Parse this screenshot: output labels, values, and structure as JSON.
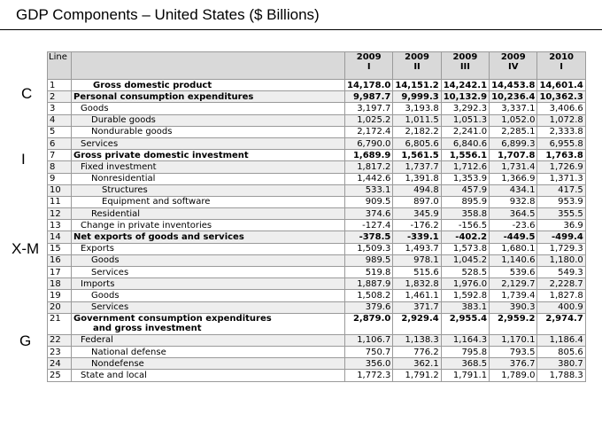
{
  "title": "GDP Components – United States ($ Billions)",
  "side_labels": [
    "C",
    "I",
    "X-M",
    "G"
  ],
  "table": {
    "line_header": "Line",
    "columns": [
      {
        "year": "2009",
        "quarter": "I"
      },
      {
        "year": "2009",
        "quarter": "II"
      },
      {
        "year": "2009",
        "quarter": "III"
      },
      {
        "year": "2009",
        "quarter": "IV"
      },
      {
        "year": "2010",
        "quarter": "I"
      }
    ],
    "rows": [
      {
        "line": "1",
        "label": "Gross domestic product",
        "values": [
          "14,178.0",
          "14,151.2",
          "14,242.1",
          "14,453.8",
          "14,601.4"
        ]
      },
      {
        "line": "2",
        "label": "Personal consumption expenditures",
        "values": [
          "9,987.7",
          "9,999.3",
          "10,132.9",
          "10,236.4",
          "10,362.3"
        ]
      },
      {
        "line": "3",
        "label": "Goods",
        "values": [
          "3,197.7",
          "3,193.8",
          "3,292.3",
          "3,337.1",
          "3,406.6"
        ]
      },
      {
        "line": "4",
        "label": "Durable goods",
        "values": [
          "1,025.2",
          "1,011.5",
          "1,051.3",
          "1,052.0",
          "1,072.8"
        ]
      },
      {
        "line": "5",
        "label": "Nondurable goods",
        "values": [
          "2,172.4",
          "2,182.2",
          "2,241.0",
          "2,285.1",
          "2,333.8"
        ]
      },
      {
        "line": "6",
        "label": "Services",
        "values": [
          "6,790.0",
          "6,805.6",
          "6,840.6",
          "6,899.3",
          "6,955.8"
        ]
      },
      {
        "line": "7",
        "label": "Gross private domestic investment",
        "values": [
          "1,689.9",
          "1,561.5",
          "1,556.1",
          "1,707.8",
          "1,763.8"
        ]
      },
      {
        "line": "8",
        "label": "Fixed investment",
        "values": [
          "1,817.2",
          "1,737.7",
          "1,712.6",
          "1,731.4",
          "1,726.9"
        ]
      },
      {
        "line": "9",
        "label": "Nonresidential",
        "values": [
          "1,442.6",
          "1,391.8",
          "1,353.9",
          "1,366.9",
          "1,371.3"
        ]
      },
      {
        "line": "10",
        "label": "Structures",
        "values": [
          "533.1",
          "494.8",
          "457.9",
          "434.1",
          "417.5"
        ]
      },
      {
        "line": "11",
        "label": "Equipment and software",
        "values": [
          "909.5",
          "897.0",
          "895.9",
          "932.8",
          "953.9"
        ]
      },
      {
        "line": "12",
        "label": "Residential",
        "values": [
          "374.6",
          "345.9",
          "358.8",
          "364.5",
          "355.5"
        ]
      },
      {
        "line": "13",
        "label": "Change in private inventories",
        "values": [
          "-127.4",
          "-176.2",
          "-156.5",
          "-23.6",
          "36.9"
        ]
      },
      {
        "line": "14",
        "label": "Net exports of goods and services",
        "values": [
          "-378.5",
          "-339.1",
          "-402.2",
          "-449.5",
          "-499.4"
        ]
      },
      {
        "line": "15",
        "label": "Exports",
        "values": [
          "1,509.3",
          "1,493.7",
          "1,573.8",
          "1,680.1",
          "1,729.3"
        ]
      },
      {
        "line": "16",
        "label": "Goods",
        "values": [
          "989.5",
          "978.1",
          "1,045.2",
          "1,140.6",
          "1,180.0"
        ]
      },
      {
        "line": "17",
        "label": "Services",
        "values": [
          "519.8",
          "515.6",
          "528.5",
          "539.6",
          "549.3"
        ]
      },
      {
        "line": "18",
        "label": "Imports",
        "values": [
          "1,887.9",
          "1,832.8",
          "1,976.0",
          "2,129.7",
          "2,228.7"
        ]
      },
      {
        "line": "19",
        "label": "Goods",
        "values": [
          "1,508.2",
          "1,461.1",
          "1,592.8",
          "1,739.4",
          "1,827.8"
        ]
      },
      {
        "line": "20",
        "label": "Services",
        "values": [
          "379.6",
          "371.7",
          "383.1",
          "390.3",
          "400.9"
        ]
      },
      {
        "line": "21",
        "label": "Government consumption expenditures",
        "label2": "and gross investment",
        "values": [
          "2,879.0",
          "2,929.4",
          "2,955.4",
          "2,959.2",
          "2,974.7"
        ]
      },
      {
        "line": "22",
        "label": "Federal",
        "values": [
          "1,106.7",
          "1,138.3",
          "1,164.3",
          "1,170.1",
          "1,186.4"
        ]
      },
      {
        "line": "23",
        "label": "National defense",
        "values": [
          "750.7",
          "776.2",
          "795.8",
          "793.5",
          "805.6"
        ]
      },
      {
        "line": "24",
        "label": "Nondefense",
        "values": [
          "356.0",
          "362.1",
          "368.5",
          "376.7",
          "380.7"
        ]
      },
      {
        "line": "25",
        "label": "State and local",
        "values": [
          "1,772.3",
          "1,791.2",
          "1,791.1",
          "1,789.0",
          "1,788.3"
        ]
      }
    ]
  }
}
